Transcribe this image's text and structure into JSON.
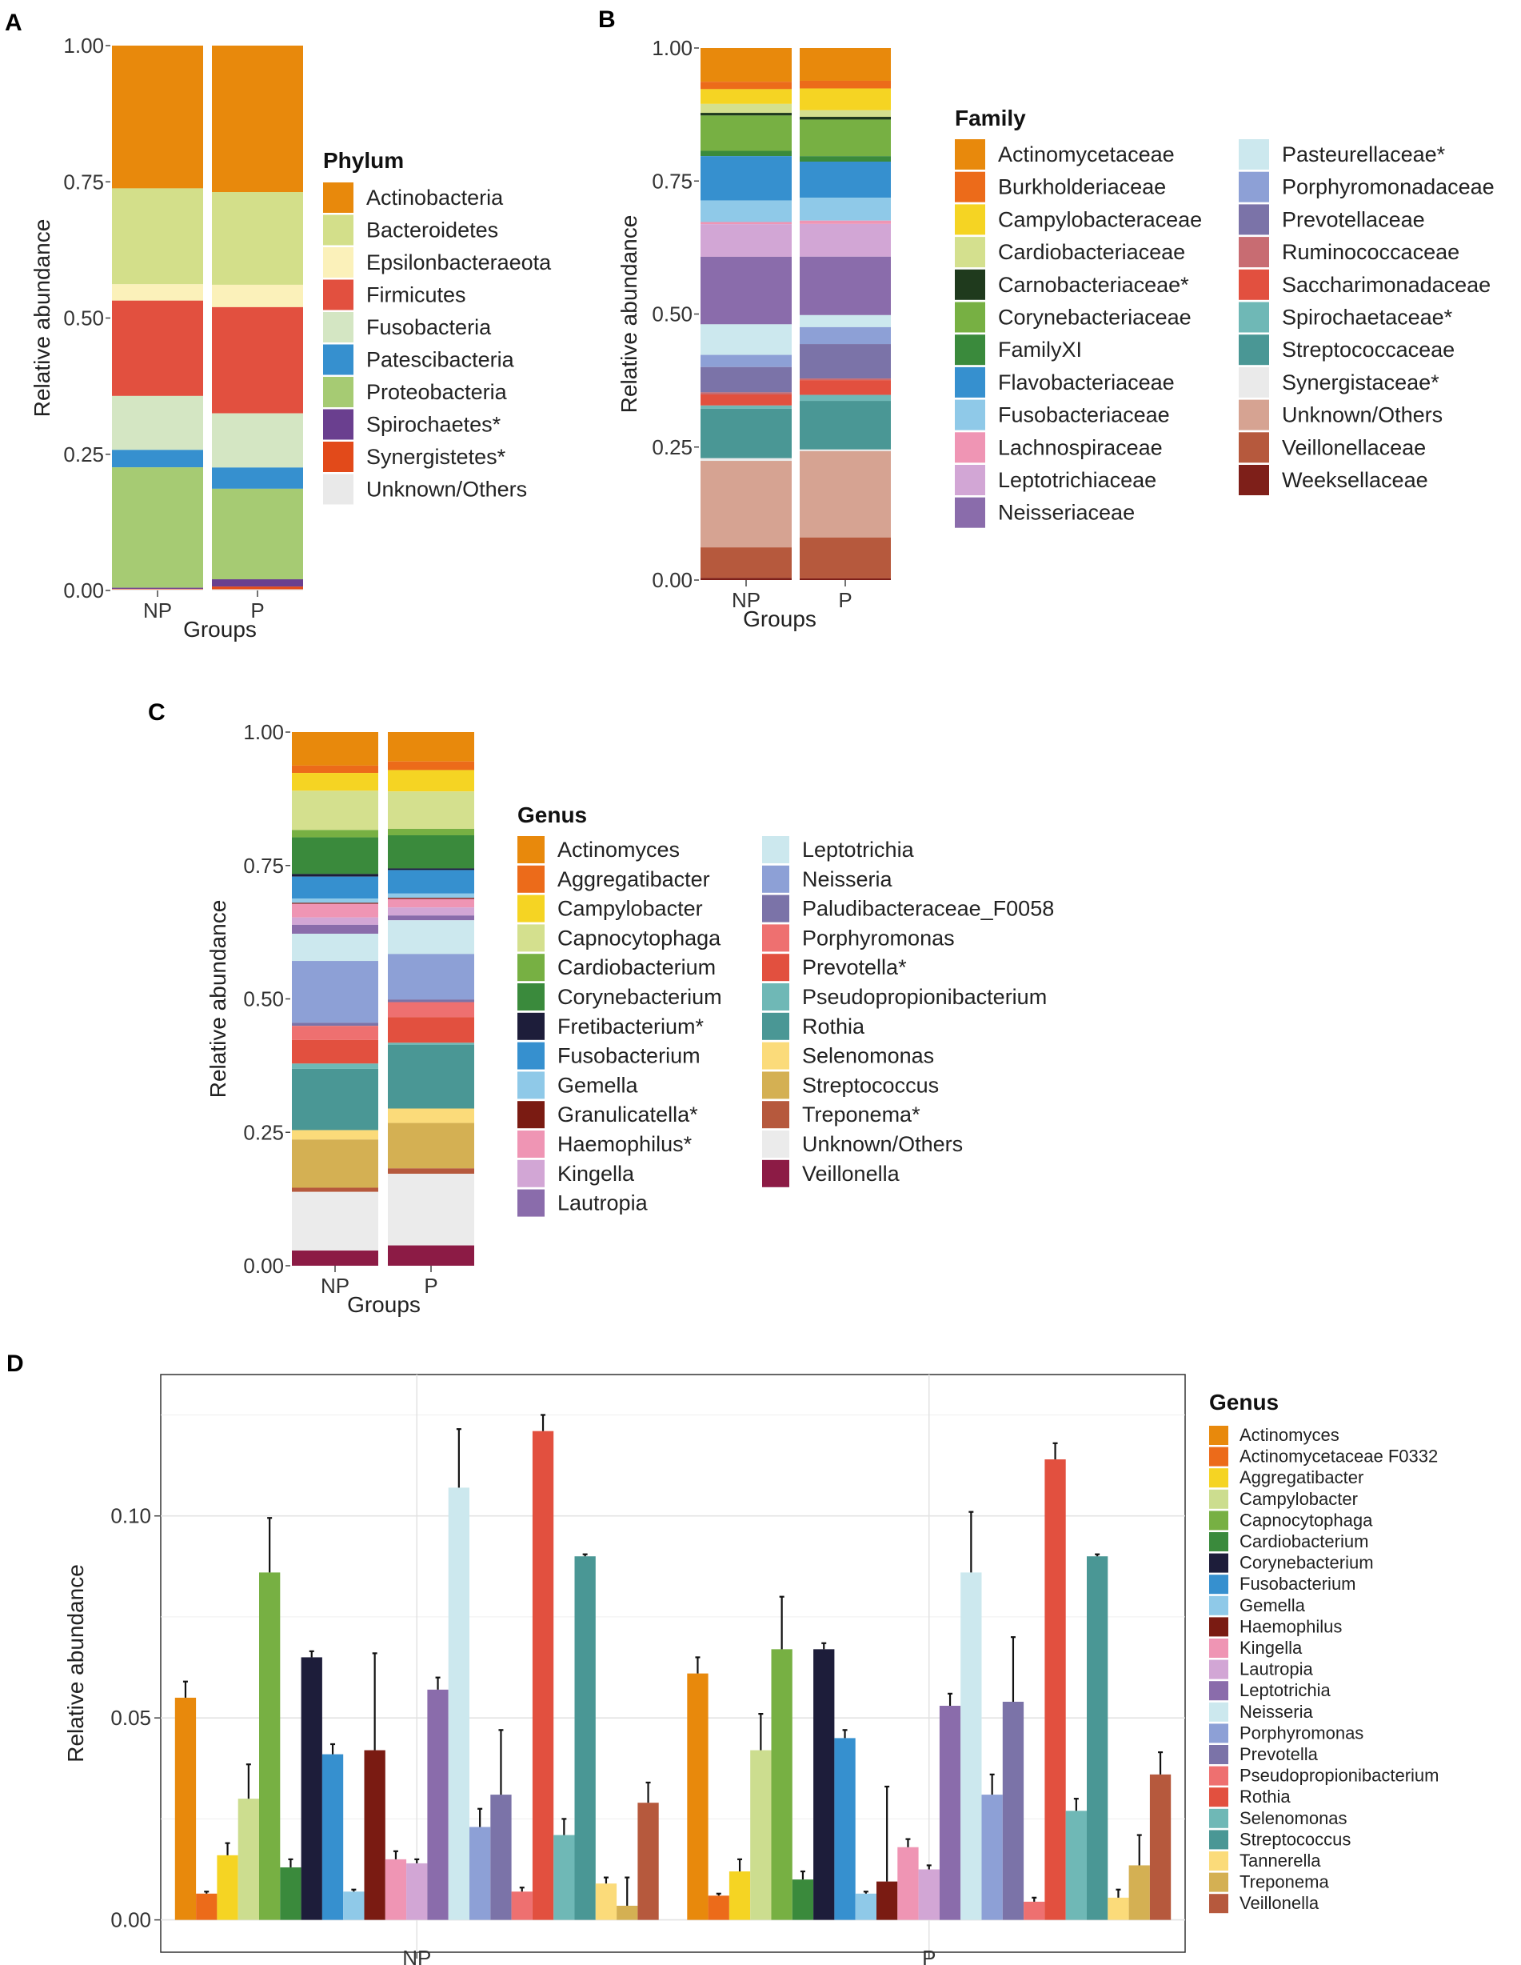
{
  "panels": {
    "A": {
      "letter": "A",
      "chart_data": {
        "type": "stacked-bar",
        "categories": [
          "NP",
          "P"
        ],
        "xlabel": "Groups",
        "ylabel": "Relative abundance",
        "ylim": [
          0,
          1
        ],
        "yticks": [
          "0.00",
          "0.25",
          "0.50",
          "0.75",
          "1.00"
        ],
        "legend_title": "Phylum",
        "legend_columns": 1,
        "series": [
          {
            "name": "Actinobacteria",
            "color": "#E8890C",
            "values": [
              0.262,
              0.262
            ]
          },
          {
            "name": "Bacteroidetes",
            "color": "#D3DF8A",
            "values": [
              0.176,
              0.166
            ]
          },
          {
            "name": "Epsilonbacteraeota",
            "color": "#FBF1BA",
            "values": [
              0.03,
              0.04
            ]
          },
          {
            "name": "Firmicutes",
            "color": "#E2503F",
            "values": [
              0.175,
              0.19
            ]
          },
          {
            "name": "Fusobacteria",
            "color": "#D4E6C3",
            "values": [
              0.099,
              0.097
            ]
          },
          {
            "name": "Patescibacteria",
            "color": "#3690CF",
            "values": [
              0.032,
              0.038
            ]
          },
          {
            "name": "Proteobacteria",
            "color": "#A6CB73",
            "values": [
              0.221,
              0.162
            ]
          },
          {
            "name": "Spirochaetes*",
            "color": "#6A3F8F",
            "values": [
              0.002,
              0.013
            ]
          },
          {
            "name": "Synergistetes*",
            "color": "#E24A1A",
            "values": [
              0.001,
              0.005
            ]
          },
          {
            "name": "Unknown/Others",
            "color": "#E9E9E9",
            "values": [
              0.002,
              0.002
            ]
          }
        ]
      }
    },
    "B": {
      "letter": "B",
      "chart_data": {
        "type": "stacked-bar",
        "categories": [
          "NP",
          "P"
        ],
        "xlabel": "Groups",
        "ylabel": "Relative abundance",
        "ylim": [
          0,
          1
        ],
        "yticks": [
          "0.00",
          "0.25",
          "0.50",
          "0.75",
          "1.00"
        ],
        "legend_title": "Family",
        "legend_columns": 2,
        "series": [
          {
            "name": "Actinomycetaceae",
            "color": "#E8890C",
            "values": [
              0.064,
              0.06
            ]
          },
          {
            "name": "Burkholderiaceae",
            "color": "#EC6B1A",
            "values": [
              0.014,
              0.014
            ]
          },
          {
            "name": "Campylobacteraceae",
            "color": "#F5D423",
            "values": [
              0.028,
              0.04
            ]
          },
          {
            "name": "Cardiobacteriaceae",
            "color": "#D4E08E",
            "values": [
              0.017,
              0.012
            ]
          },
          {
            "name": "Carnobacteriaceae*",
            "color": "#1F3A1D",
            "values": [
              0.005,
              0.005
            ]
          },
          {
            "name": "Corynebacteriaceae",
            "color": "#77B043",
            "values": [
              0.067,
              0.067
            ]
          },
          {
            "name": "FamilyXI",
            "color": "#3A8A3C",
            "values": [
              0.01,
              0.01
            ]
          },
          {
            "name": "Flavobacteriaceae",
            "color": "#3690CF",
            "values": [
              0.084,
              0.066
            ]
          },
          {
            "name": "Fusobacteriaceae",
            "color": "#8FC9E8",
            "values": [
              0.041,
              0.042
            ]
          },
          {
            "name": "Lachnospiraceae",
            "color": "#EF95B4",
            "values": [
              0.004,
              0.006
            ]
          },
          {
            "name": "Leptotrichiaceae",
            "color": "#D2A6D5",
            "values": [
              0.062,
              0.06
            ]
          },
          {
            "name": "Neisseriaceae",
            "color": "#8A6CAB",
            "values": [
              0.128,
              0.107
            ]
          },
          {
            "name": "Pasteurellaceae*",
            "color": "#CCE8EE",
            "values": [
              0.058,
              0.022
            ]
          },
          {
            "name": "Porphyromonadaceae",
            "color": "#8DA0D6",
            "values": [
              0.023,
              0.031
            ]
          },
          {
            "name": "Prevotellaceae",
            "color": "#7B73A8",
            "values": [
              0.048,
              0.063
            ]
          },
          {
            "name": "Ruminococcaceae",
            "color": "#C86C72",
            "values": [
              0.004,
              0.003
            ]
          },
          {
            "name": "Saccharimonadaceae",
            "color": "#E2503F",
            "values": [
              0.021,
              0.027
            ]
          },
          {
            "name": "Spirochaetaceae*",
            "color": "#6FB8B6",
            "values": [
              0.006,
              0.011
            ]
          },
          {
            "name": "Streptococcaceae",
            "color": "#4A9795",
            "values": [
              0.094,
              0.089
            ]
          },
          {
            "name": "Synergistaceae*",
            "color": "#EAEAEA",
            "values": [
              0.005,
              0.003
            ]
          },
          {
            "name": "Unknown/Others",
            "color": "#D6A392",
            "values": [
              0.164,
              0.158
            ]
          },
          {
            "name": "Veillonellaceae",
            "color": "#B6593D",
            "values": [
              0.058,
              0.075
            ]
          },
          {
            "name": "Weeksellaceae",
            "color": "#7E1F19",
            "values": [
              0.004,
              0.003
            ]
          }
        ]
      }
    },
    "C": {
      "letter": "C",
      "chart_data": {
        "type": "stacked-bar",
        "categories": [
          "NP",
          "P"
        ],
        "xlabel": "Groups",
        "ylabel": "Relative abundance",
        "ylim": [
          0,
          1
        ],
        "yticks": [
          "0.00",
          "0.25",
          "0.50",
          "0.75",
          "1.00"
        ],
        "legend_title": "Genus",
        "legend_columns": 2,
        "series": [
          {
            "name": "Actinomyces",
            "color": "#E8890C",
            "values": [
              0.064,
              0.055
            ]
          },
          {
            "name": "Aggregatibacter",
            "color": "#EC6B1A",
            "values": [
              0.014,
              0.016
            ]
          },
          {
            "name": "Campylobacter",
            "color": "#F5D423",
            "values": [
              0.034,
              0.04
            ]
          },
          {
            "name": "Capnocytophaga",
            "color": "#D4E08E",
            "values": [
              0.075,
              0.07
            ]
          },
          {
            "name": "Cardiobacterium",
            "color": "#77B043",
            "values": [
              0.014,
              0.012
            ]
          },
          {
            "name": "Corynebacterium",
            "color": "#3A8A3C",
            "values": [
              0.07,
              0.062
            ]
          },
          {
            "name": "Fretibacterium*",
            "color": "#1D1D3A",
            "values": [
              0.005,
              0.003
            ]
          },
          {
            "name": "Fusobacterium",
            "color": "#3690CF",
            "values": [
              0.042,
              0.044
            ]
          },
          {
            "name": "Gemella",
            "color": "#8FC9E8",
            "values": [
              0.008,
              0.008
            ]
          },
          {
            "name": "Granulicatella*",
            "color": "#7A1B12",
            "values": [
              0.002,
              0.002
            ]
          },
          {
            "name": "Haemophilus*",
            "color": "#EF95B4",
            "values": [
              0.026,
              0.016
            ]
          },
          {
            "name": "Kingella",
            "color": "#D2A6D5",
            "values": [
              0.014,
              0.015
            ]
          },
          {
            "name": "Lautropia",
            "color": "#8A6CAB",
            "values": [
              0.017,
              0.009
            ]
          },
          {
            "name": "Leptotrichia",
            "color": "#CCE8EE",
            "values": [
              0.052,
              0.063
            ]
          },
          {
            "name": "Neisseria",
            "color": "#8DA0D6",
            "values": [
              0.118,
              0.085
            ]
          },
          {
            "name": "Paludibacteraceae_F0058",
            "color": "#7B73A8",
            "values": [
              0.006,
              0.005
            ]
          },
          {
            "name": "Porphyromonas",
            "color": "#EE7070",
            "values": [
              0.027,
              0.028
            ]
          },
          {
            "name": "Prevotella*",
            "color": "#E2503F",
            "values": [
              0.045,
              0.048
            ]
          },
          {
            "name": "Pseudopropionibacterium",
            "color": "#6FB8B6",
            "values": [
              0.01,
              0.004
            ]
          },
          {
            "name": "Rothia",
            "color": "#4A9795",
            "values": [
              0.117,
              0.119
            ]
          },
          {
            "name": "Selenomonas",
            "color": "#FBDB7A",
            "values": [
              0.018,
              0.027
            ]
          },
          {
            "name": "Streptococcus",
            "color": "#D4B053",
            "values": [
              0.092,
              0.085
            ]
          },
          {
            "name": "Treponema*",
            "color": "#B6593D",
            "values": [
              0.008,
              0.01
            ]
          },
          {
            "name": "Unknown/Others",
            "color": "#EBEBEB",
            "values": [
              0.112,
              0.134
            ]
          },
          {
            "name": "Veillonella",
            "color": "#8C1B45",
            "values": [
              0.029,
              0.038
            ]
          }
        ]
      }
    },
    "D": {
      "letter": "D",
      "chart_data": {
        "type": "bar",
        "categories": [
          "NP",
          "P"
        ],
        "xlabel": "",
        "ylabel": "Relative abundance",
        "ylim": [
          -0.008,
          0.135
        ],
        "yticks": [
          "0.00",
          "0.05",
          "0.10"
        ],
        "legend_title": "Genus",
        "error_bars": true,
        "series": [
          {
            "name": "Actinomyces",
            "color": "#E8890C",
            "values": [
              0.055,
              0.061
            ],
            "errors": [
              0.004,
              0.004
            ]
          },
          {
            "name": "Actinomycetaceae F0332",
            "color": "#EC6B1A",
            "values": [
              0.0065,
              0.006
            ],
            "errors": [
              0.0005,
              0.0005
            ]
          },
          {
            "name": "Aggregatibacter",
            "color": "#F5D423",
            "values": [
              0.016,
              0.012
            ],
            "errors": [
              0.003,
              0.003
            ]
          },
          {
            "name": "Campylobacter",
            "color": "#CCDD8F",
            "values": [
              0.03,
              0.042
            ],
            "errors": [
              0.0085,
              0.009
            ]
          },
          {
            "name": "Capnocytophaga",
            "color": "#77B043",
            "values": [
              0.086,
              0.067
            ],
            "errors": [
              0.0135,
              0.013
            ]
          },
          {
            "name": "Cardiobacterium",
            "color": "#3A8A3C",
            "values": [
              0.013,
              0.01
            ],
            "errors": [
              0.002,
              0.002
            ]
          },
          {
            "name": "Corynebacterium",
            "color": "#1D1D3A",
            "values": [
              0.065,
              0.067
            ],
            "errors": [
              0.0015,
              0.0015
            ]
          },
          {
            "name": "Fusobacterium",
            "color": "#3690CF",
            "values": [
              0.041,
              0.045
            ],
            "errors": [
              0.0025,
              0.002
            ]
          },
          {
            "name": "Gemella",
            "color": "#8FC9E8",
            "values": [
              0.007,
              0.0065
            ],
            "errors": [
              0.0005,
              0.0005
            ]
          },
          {
            "name": "Haemophilus",
            "color": "#7A1B12",
            "values": [
              0.042,
              0.0095
            ],
            "errors": [
              0.024,
              0.0235
            ]
          },
          {
            "name": "Kingella",
            "color": "#EF95B4",
            "values": [
              0.015,
              0.018
            ],
            "errors": [
              0.002,
              0.002
            ]
          },
          {
            "name": "Lautropia",
            "color": "#D2A6D5",
            "values": [
              0.014,
              0.0125
            ],
            "errors": [
              0.001,
              0.001
            ]
          },
          {
            "name": "Leptotrichia",
            "color": "#8A6CAB",
            "values": [
              0.057,
              0.053
            ],
            "errors": [
              0.003,
              0.003
            ]
          },
          {
            "name": "Neisseria",
            "color": "#CCE8EE",
            "values": [
              0.107,
              0.086
            ],
            "errors": [
              0.0145,
              0.015
            ]
          },
          {
            "name": "Porphyromonas",
            "color": "#8DA0D6",
            "values": [
              0.023,
              0.031
            ],
            "errors": [
              0.0045,
              0.005
            ]
          },
          {
            "name": "Prevotella",
            "color": "#7B73A8",
            "values": [
              0.031,
              0.054
            ],
            "errors": [
              0.016,
              0.016
            ]
          },
          {
            "name": "Pseudopropionibacterium",
            "color": "#EE7070",
            "values": [
              0.007,
              0.0045
            ],
            "errors": [
              0.001,
              0.001
            ]
          },
          {
            "name": "Rothia",
            "color": "#E2503F",
            "values": [
              0.121,
              0.114
            ],
            "errors": [
              0.004,
              0.004
            ]
          },
          {
            "name": "Selenomonas",
            "color": "#6FB8B6",
            "values": [
              0.021,
              0.027
            ],
            "errors": [
              0.004,
              0.003
            ]
          },
          {
            "name": "Streptococcus",
            "color": "#4A9795",
            "values": [
              0.09,
              0.09
            ],
            "errors": [
              0.0005,
              0.0005
            ]
          },
          {
            "name": "Tannerella",
            "color": "#FBDB7A",
            "values": [
              0.009,
              0.0055
            ],
            "errors": [
              0.0015,
              0.002
            ]
          },
          {
            "name": "Treponema",
            "color": "#D4B053",
            "values": [
              0.0035,
              0.0135
            ],
            "errors": [
              0.007,
              0.0075
            ]
          },
          {
            "name": "Veillonella",
            "color": "#B6593D",
            "values": [
              0.029,
              0.036
            ],
            "errors": [
              0.005,
              0.0055
            ]
          }
        ]
      }
    }
  }
}
